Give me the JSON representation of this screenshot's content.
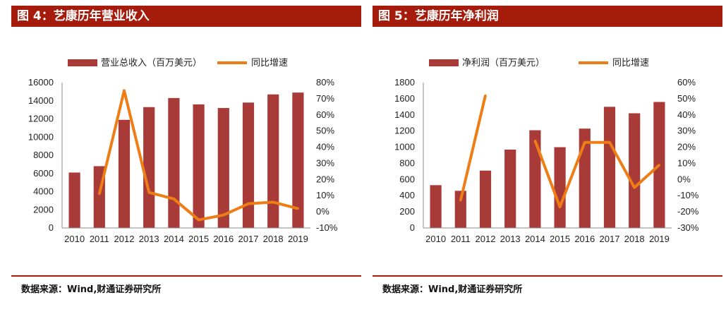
{
  "colors": {
    "title_bg": "#a51c0c",
    "bar": "#a83a37",
    "line": "#ee7d16",
    "rule": "#a51c0c"
  },
  "charts": [
    {
      "title": "图 4：艺康历年营业收入",
      "source": "数据来源：Wind,财通证券研究所",
      "chart_data": {
        "type": "bar",
        "categories": [
          "2010",
          "2011",
          "2012",
          "2013",
          "2014",
          "2015",
          "2016",
          "2017",
          "2018",
          "2019"
        ],
        "series": [
          {
            "name": "营业总收入（百万美元）",
            "type": "bar",
            "axis": "left",
            "values": [
              6100,
              6800,
              11900,
              13300,
              14300,
              13600,
              13200,
              13800,
              14700,
              14900
            ]
          },
          {
            "name": "同比增速",
            "type": "line",
            "axis": "right",
            "values": [
              null,
              11,
              75,
              12,
              8,
              -5,
              -2,
              5,
              6,
              2
            ]
          }
        ],
        "ylim": [
          0,
          16000
        ],
        "yticks": [
          "0",
          "2000",
          "4000",
          "6000",
          "8000",
          "10000",
          "12000",
          "14000",
          "16000"
        ],
        "y2lim": [
          -10,
          80
        ],
        "y2ticks": [
          "-10%",
          "0%",
          "10%",
          "20%",
          "30%",
          "40%",
          "50%",
          "60%",
          "70%",
          "80%"
        ],
        "legend": "top"
      }
    },
    {
      "title": "图 5：艺康历年净利润",
      "source": "数据来源：Wind,财通证券研究所",
      "chart_data": {
        "type": "bar",
        "categories": [
          "2010",
          "2011",
          "2012",
          "2013",
          "2014",
          "2015",
          "2016",
          "2017",
          "2018",
          "2019"
        ],
        "series": [
          {
            "name": "净利润（百万美元）",
            "type": "bar",
            "axis": "left",
            "values": [
              530,
              460,
              710,
              970,
              1210,
              1000,
              1230,
              1500,
              1420,
              1560
            ]
          },
          {
            "name": "同比增速",
            "type": "line",
            "axis": "right",
            "values": [
              null,
              -13,
              52,
              null,
              24,
              -17,
              23,
              23,
              -5,
              9
            ]
          }
        ],
        "ylim": [
          0,
          1800
        ],
        "yticks": [
          "0",
          "200",
          "400",
          "600",
          "800",
          "1000",
          "1200",
          "1400",
          "1600",
          "1800"
        ],
        "y2lim": [
          -30,
          60
        ],
        "y2ticks": [
          "-30%",
          "-20%",
          "-10%",
          "0%",
          "10%",
          "20%",
          "30%",
          "40%",
          "50%",
          "60%"
        ],
        "legend": "top"
      }
    }
  ]
}
